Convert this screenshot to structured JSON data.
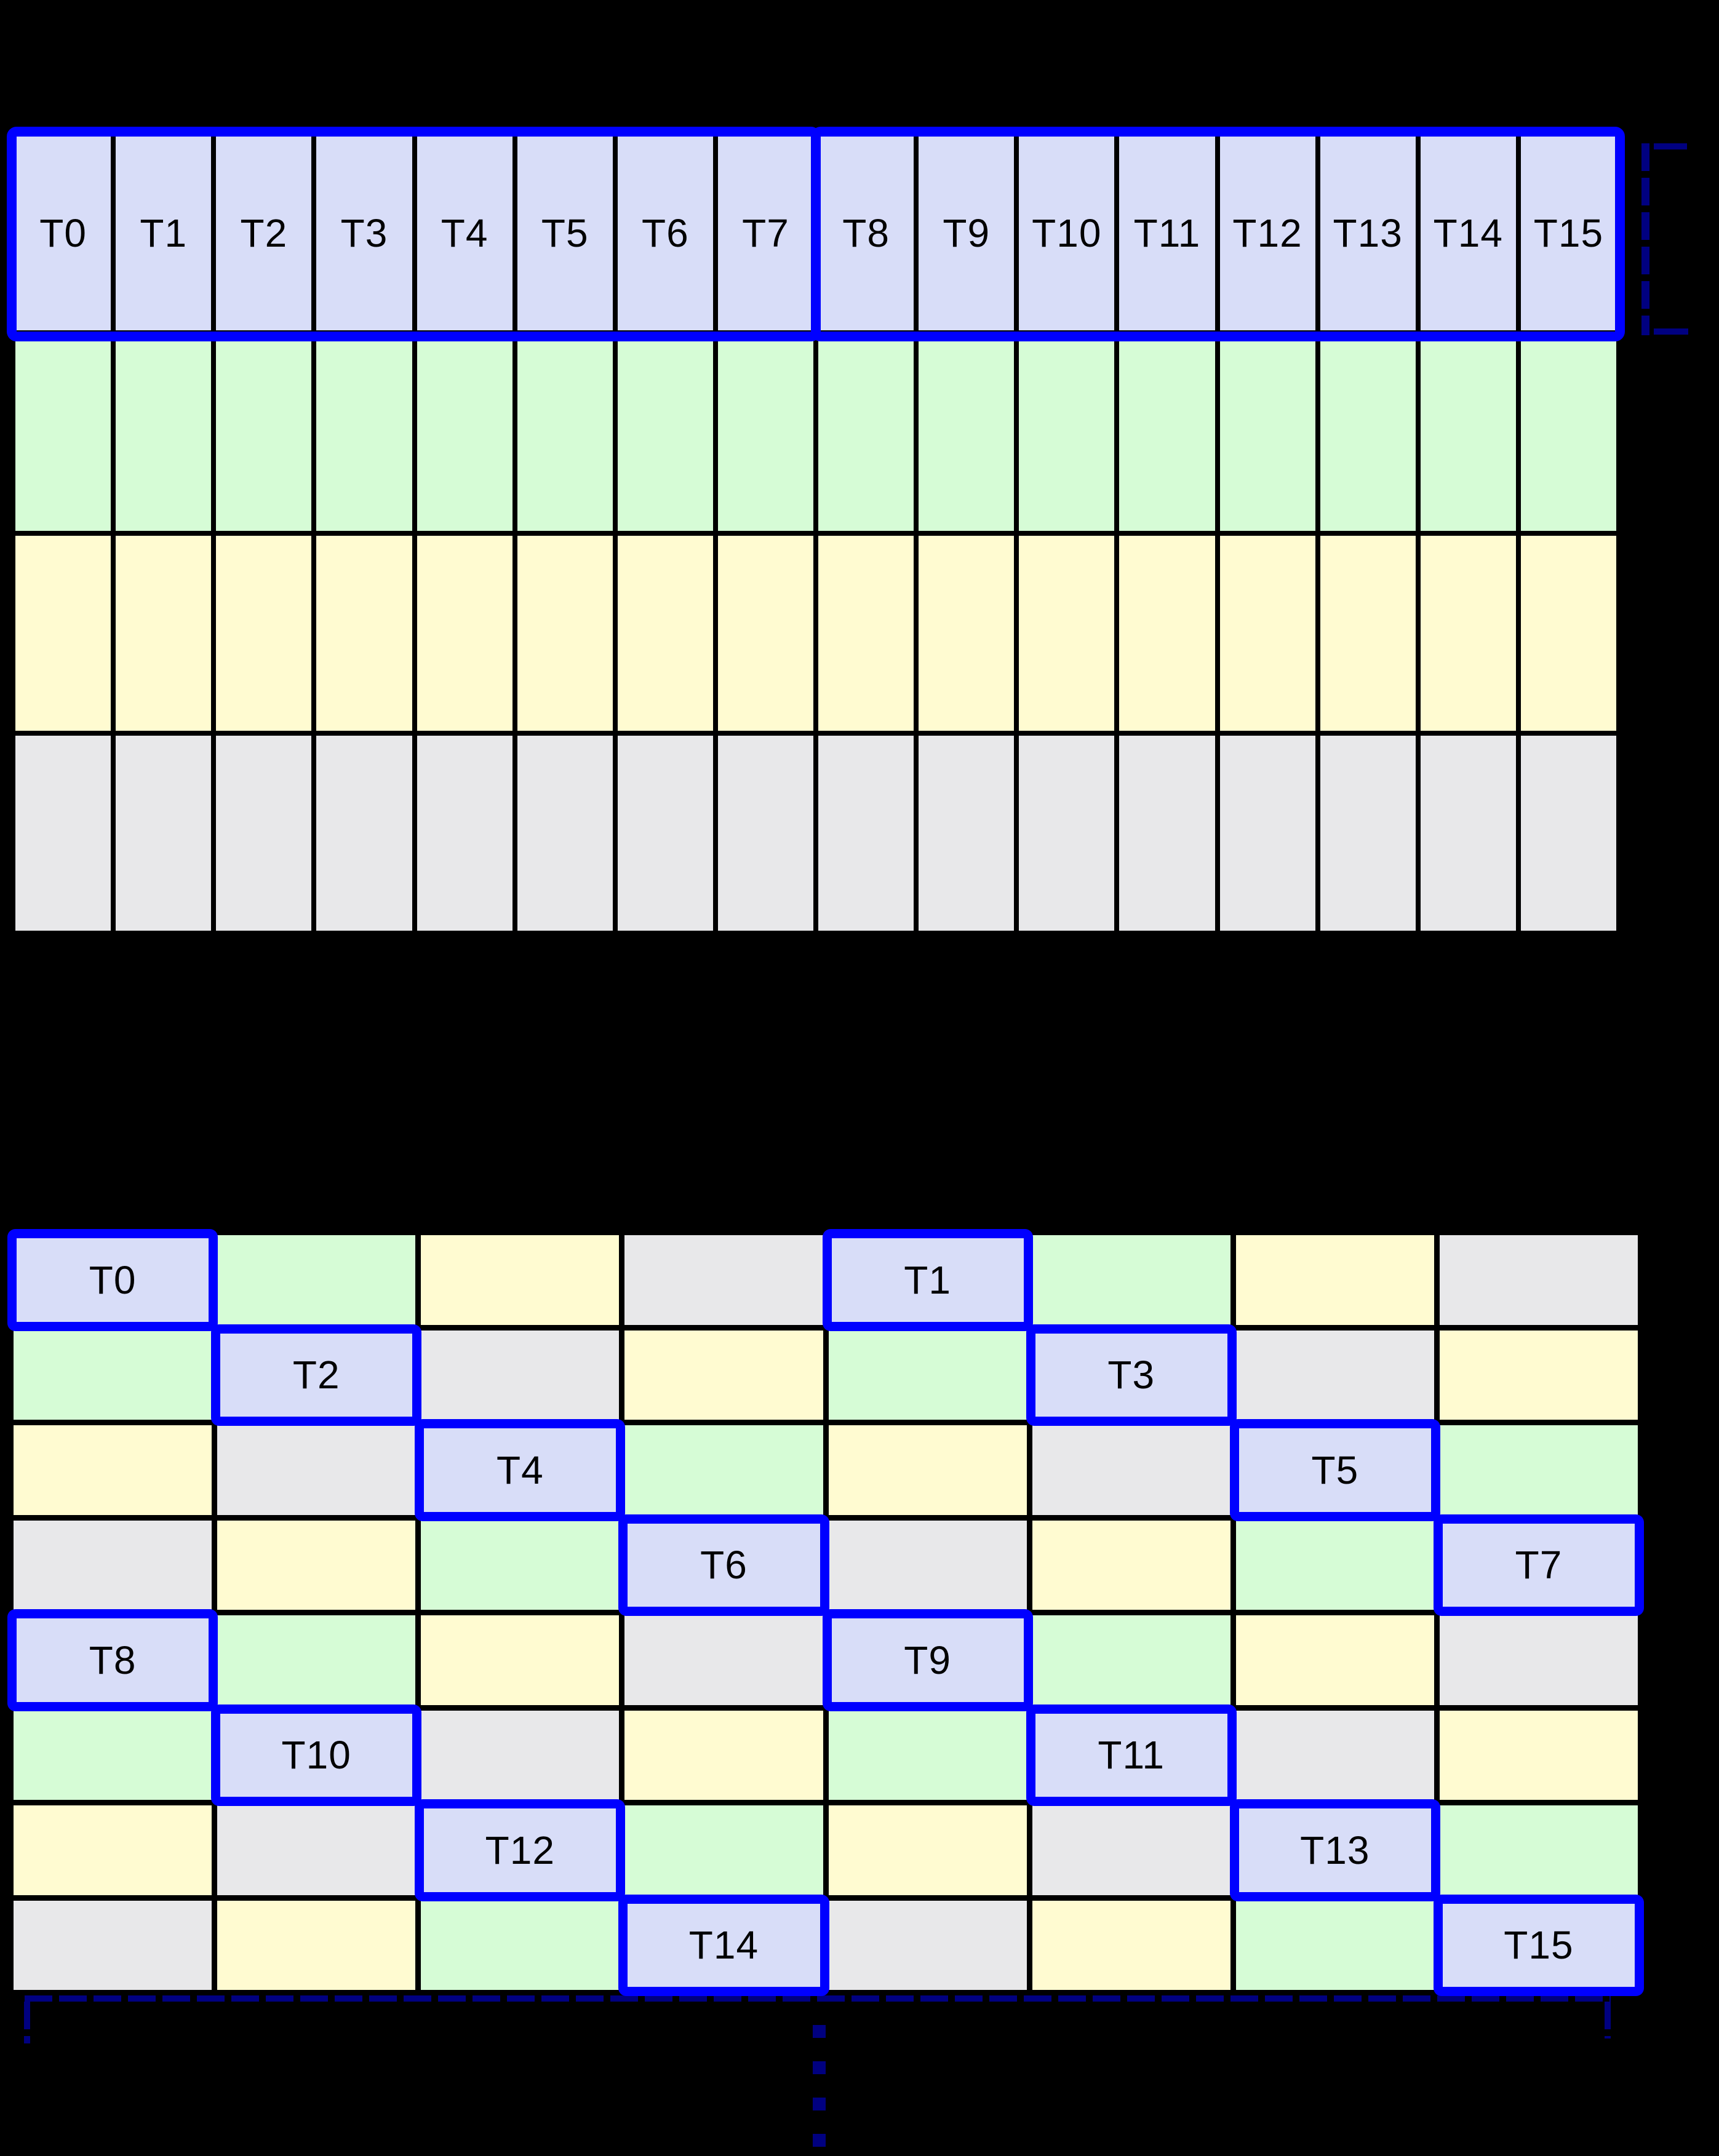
{
  "background": "#000000",
  "palette": {
    "thread": "#d8ddf8",
    "bank_green": "#d6fcd6",
    "bank_yellow": "#fffbd1",
    "bank_gray": "#e8e8ea",
    "highlight_blue": "#0000ff",
    "bracket_navy": "#000080",
    "grid_line": "#000000",
    "label_color": "#000000"
  },
  "top_grid": {
    "rows": 4,
    "columns": 16,
    "row_color_keys": [
      "thread",
      "bank_green",
      "bank_yellow",
      "bank_gray"
    ],
    "thread_labels": [
      "T0",
      "T1",
      "T2",
      "T3",
      "T4",
      "T5",
      "T6",
      "T7",
      "T8",
      "T9",
      "T10",
      "T11",
      "T12",
      "T13",
      "T14",
      "T15"
    ],
    "highlight_groups": [
      {
        "row": 0,
        "col_start": 0,
        "col_end": 7
      },
      {
        "row": 0,
        "col_start": 8,
        "col_end": 15
      }
    ]
  },
  "bottom_grid": {
    "rows": 8,
    "columns": 8,
    "color_cycle_keys": [
      "thread",
      "bank_green",
      "bank_yellow",
      "bank_gray"
    ],
    "pattern": "color_index = (row mod 4) xor (col mod 4)",
    "thread_cells": [
      {
        "label": "T0",
        "row": 0,
        "col": 0
      },
      {
        "label": "T1",
        "row": 0,
        "col": 4
      },
      {
        "label": "T2",
        "row": 1,
        "col": 1
      },
      {
        "label": "T3",
        "row": 1,
        "col": 5
      },
      {
        "label": "T4",
        "row": 2,
        "col": 2
      },
      {
        "label": "T5",
        "row": 2,
        "col": 6
      },
      {
        "label": "T6",
        "row": 3,
        "col": 3
      },
      {
        "label": "T7",
        "row": 3,
        "col": 7
      },
      {
        "label": "T8",
        "row": 4,
        "col": 0
      },
      {
        "label": "T9",
        "row": 4,
        "col": 4
      },
      {
        "label": "T10",
        "row": 5,
        "col": 1
      },
      {
        "label": "T11",
        "row": 5,
        "col": 5
      },
      {
        "label": "T12",
        "row": 6,
        "col": 2
      },
      {
        "label": "T13",
        "row": 6,
        "col": 6
      },
      {
        "label": "T14",
        "row": 7,
        "col": 3
      },
      {
        "label": "T15",
        "row": 7,
        "col": 7
      }
    ]
  },
  "annotations": {
    "right_bracket": {
      "description": "dashed bracket spanning thread row height, right of top grid"
    },
    "bottom_bracket": {
      "description": "dashed bracket spanning full width below bottom grid"
    },
    "continuation_dots": 4
  }
}
